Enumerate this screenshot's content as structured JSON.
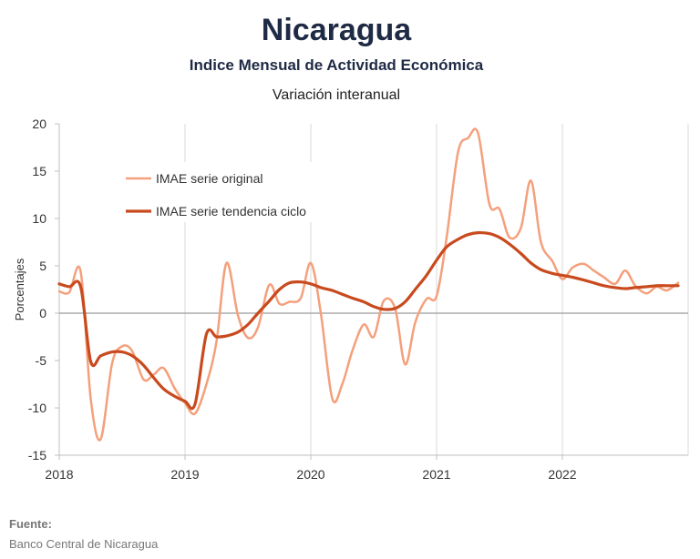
{
  "title": "Nicaragua",
  "subtitle": "Indice Mensual de  Actividad Económica",
  "subtitle2": "Variación interanual",
  "source": {
    "label": "Fuente:",
    "text": "Banco Central de Nicaragua"
  },
  "chart_data": {
    "type": "line",
    "ylabel": "Porcentajes",
    "xlabel": "",
    "ylim": [
      -15,
      20
    ],
    "yticks": [
      20,
      15,
      10,
      5,
      0,
      -5,
      -10,
      -15
    ],
    "xlim": [
      2018,
      2023
    ],
    "xticks": [
      2018,
      2019,
      2020,
      2021,
      2022
    ],
    "grid": "vertical",
    "legend_position": "upper-left",
    "series": [
      {
        "name": "IMAE serie original",
        "color": "#f4a07c",
        "x": [
          2018.0,
          2018.08,
          2018.17,
          2018.25,
          2018.33,
          2018.42,
          2018.5,
          2018.58,
          2018.67,
          2018.75,
          2018.83,
          2018.92,
          2019.0,
          2019.08,
          2019.17,
          2019.25,
          2019.33,
          2019.42,
          2019.5,
          2019.58,
          2019.67,
          2019.75,
          2019.83,
          2019.92,
          2020.0,
          2020.08,
          2020.17,
          2020.25,
          2020.33,
          2020.42,
          2020.5,
          2020.58,
          2020.67,
          2020.75,
          2020.83,
          2020.92,
          2021.0,
          2021.08,
          2021.17,
          2021.25,
          2021.33,
          2021.42,
          2021.5,
          2021.58,
          2021.67,
          2021.75,
          2021.83,
          2021.92,
          2022.0,
          2022.08,
          2022.17,
          2022.25,
          2022.33,
          2022.42,
          2022.5,
          2022.58,
          2022.67,
          2022.75,
          2022.83,
          2022.92
        ],
        "values": [
          2.3,
          2.2,
          4.4,
          -9.0,
          -13.3,
          -5.3,
          -3.5,
          -4.0,
          -7.0,
          -6.5,
          -5.8,
          -8.0,
          -9.5,
          -10.6,
          -7.5,
          -3.0,
          5.3,
          -0.2,
          -2.6,
          -1.5,
          3.0,
          1.0,
          1.2,
          1.6,
          5.3,
          0.0,
          -9.0,
          -7.5,
          -4.0,
          -1.2,
          -2.5,
          1.3,
          0.5,
          -5.4,
          -1.0,
          1.5,
          1.8,
          8.0,
          17.0,
          18.5,
          19.0,
          11.5,
          11.0,
          8.0,
          9.0,
          14.0,
          7.5,
          5.5,
          3.6,
          4.8,
          5.2,
          4.5,
          3.8,
          3.1,
          4.5,
          2.9,
          2.1,
          2.8,
          2.4,
          3.2
        ]
      },
      {
        "name": "IMAE serie  tendencia ciclo",
        "color": "#c84a1e",
        "x": [
          2018.0,
          2018.08,
          2018.17,
          2018.25,
          2018.33,
          2018.42,
          2018.5,
          2018.58,
          2018.67,
          2018.75,
          2018.83,
          2018.92,
          2019.0,
          2019.08,
          2019.17,
          2019.25,
          2019.33,
          2019.42,
          2019.5,
          2019.58,
          2019.67,
          2019.75,
          2019.83,
          2019.92,
          2020.0,
          2020.08,
          2020.17,
          2020.25,
          2020.33,
          2020.42,
          2020.5,
          2020.58,
          2020.67,
          2020.75,
          2020.83,
          2020.92,
          2021.0,
          2021.08,
          2021.17,
          2021.25,
          2021.33,
          2021.42,
          2021.5,
          2021.58,
          2021.67,
          2021.75,
          2021.83,
          2021.92,
          2022.0,
          2022.08,
          2022.17,
          2022.25,
          2022.33,
          2022.42,
          2022.5,
          2022.58,
          2022.67,
          2022.75,
          2022.83,
          2022.92
        ],
        "values": [
          3.1,
          2.8,
          2.8,
          -5.1,
          -4.5,
          -4.1,
          -4.1,
          -4.5,
          -5.5,
          -6.8,
          -8.0,
          -8.8,
          -9.3,
          -9.6,
          -2.2,
          -2.5,
          -2.4,
          -2.0,
          -1.2,
          0.0,
          1.3,
          2.5,
          3.2,
          3.3,
          3.1,
          2.7,
          2.4,
          2.0,
          1.6,
          1.2,
          0.7,
          0.4,
          0.5,
          1.2,
          2.5,
          4.0,
          5.6,
          7.0,
          7.8,
          8.3,
          8.5,
          8.4,
          8.0,
          7.3,
          6.3,
          5.3,
          4.6,
          4.2,
          4.0,
          3.8,
          3.5,
          3.2,
          2.9,
          2.7,
          2.6,
          2.7,
          2.8,
          2.9,
          2.9,
          2.9
        ]
      }
    ]
  }
}
